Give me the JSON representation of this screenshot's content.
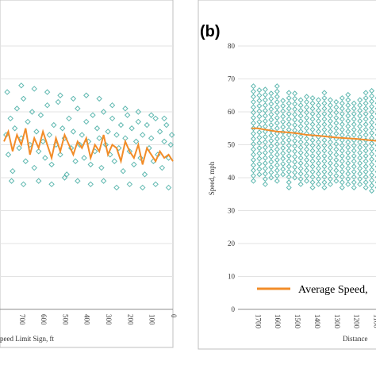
{
  "chart_data": [
    {
      "type": "scatter",
      "panel_label": "",
      "xlabel": "peed Limit Sign, ft",
      "ylabel": "",
      "x_ticks": [
        700,
        600,
        500,
        400,
        300,
        200,
        100,
        0
      ],
      "xlim": [
        780,
        0
      ],
      "ylim": [
        0,
        80
      ],
      "grid": true,
      "series": [
        {
          "marker": "diamond",
          "color": "#5fb8b0",
          "points": [
            [
              770,
              53
            ],
            [
              760,
              47
            ],
            [
              750,
              58
            ],
            [
              740,
              42
            ],
            [
              730,
              55
            ],
            [
              720,
              61
            ],
            [
              710,
              49
            ],
            [
              700,
              52
            ],
            [
              690,
              64
            ],
            [
              680,
              45
            ],
            [
              670,
              57
            ],
            [
              660,
              50
            ],
            [
              650,
              60
            ],
            [
              640,
              43
            ],
            [
              630,
              54
            ],
            [
              620,
              48
            ],
            [
              610,
              59
            ],
            [
              600,
              51
            ],
            [
              590,
              46
            ],
            [
              580,
              62
            ],
            [
              570,
              53
            ],
            [
              560,
              44
            ],
            [
              550,
              56
            ],
            [
              540,
              50
            ],
            [
              530,
              63
            ],
            [
              520,
              47
            ],
            [
              510,
              55
            ],
            [
              500,
              52
            ],
            [
              490,
              41
            ],
            [
              480,
              58
            ],
            [
              470,
              49
            ],
            [
              460,
              54
            ],
            [
              450,
              45
            ],
            [
              440,
              61
            ],
            [
              430,
              50
            ],
            [
              420,
              53
            ],
            [
              410,
              46
            ],
            [
              400,
              57
            ],
            [
              390,
              51
            ],
            [
              380,
              44
            ],
            [
              370,
              59
            ],
            [
              360,
              48
            ],
            [
              350,
              55
            ],
            [
              340,
              52
            ],
            [
              330,
              43
            ],
            [
              320,
              60
            ],
            [
              310,
              50
            ],
            [
              300,
              54
            ],
            [
              290,
              47
            ],
            [
              280,
              58
            ],
            [
              270,
              45
            ],
            [
              260,
              53
            ],
            [
              250,
              49
            ],
            [
              240,
              56
            ],
            [
              230,
              42
            ],
            [
              220,
              52
            ],
            [
              210,
              59
            ],
            [
              200,
              48
            ],
            [
              190,
              55
            ],
            [
              180,
              44
            ],
            [
              170,
              51
            ],
            [
              160,
              57
            ],
            [
              150,
              46
            ],
            [
              140,
              53
            ],
            [
              130,
              41
            ],
            [
              120,
              56
            ],
            [
              110,
              49
            ],
            [
              100,
              52
            ],
            [
              90,
              45
            ],
            [
              80,
              58
            ],
            [
              70,
              47
            ],
            [
              60,
              54
            ],
            [
              50,
              43
            ],
            [
              40,
              51
            ],
            [
              30,
              56
            ],
            [
              20,
              46
            ],
            [
              10,
              50
            ],
            [
              5,
              53
            ],
            [
              765,
              66
            ],
            [
              700,
              68
            ],
            [
              640,
              67
            ],
            [
              580,
              66
            ],
            [
              520,
              65
            ],
            [
              460,
              64
            ],
            [
              400,
              65
            ],
            [
              340,
              64
            ],
            [
              280,
              62
            ],
            [
              220,
              61
            ],
            [
              160,
              60
            ],
            [
              100,
              59
            ],
            [
              40,
              58
            ],
            [
              745,
              39
            ],
            [
              690,
              38
            ],
            [
              620,
              39
            ],
            [
              560,
              38
            ],
            [
              500,
              40
            ],
            [
              440,
              39
            ],
            [
              380,
              38
            ],
            [
              320,
              39
            ],
            [
              260,
              37
            ],
            [
              200,
              38
            ],
            [
              140,
              37
            ],
            [
              80,
              38
            ],
            [
              20,
              37
            ]
          ]
        },
        {
          "name": "Average Speed",
          "color": "#f28c28",
          "x": [
            780,
            760,
            740,
            720,
            700,
            680,
            660,
            640,
            620,
            600,
            580,
            560,
            540,
            520,
            500,
            480,
            460,
            440,
            420,
            400,
            380,
            360,
            340,
            320,
            300,
            280,
            260,
            240,
            220,
            200,
            180,
            160,
            140,
            120,
            100,
            80,
            60,
            40,
            20,
            0
          ],
          "y": [
            51,
            54,
            48,
            53,
            50,
            55,
            47,
            52,
            49,
            54,
            50,
            46,
            52,
            48,
            53,
            50,
            47,
            51,
            49,
            52,
            46,
            50,
            48,
            53,
            47,
            50,
            49,
            45,
            51,
            48,
            46,
            50,
            44,
            49,
            47,
            45,
            48,
            46,
            47,
            45
          ]
        }
      ]
    },
    {
      "type": "scatter",
      "panel_label": "(b)",
      "xlabel": "Distance",
      "ylabel": "Speed, mph",
      "x_ticks": [
        1700,
        1600,
        1500,
        1400,
        1300,
        1200,
        1100
      ],
      "xlim": [
        1750,
        1050
      ],
      "ylim": [
        0,
        80
      ],
      "y_ticks": [
        0,
        10,
        20,
        30,
        40,
        50,
        60,
        70,
        80
      ],
      "grid": true,
      "legend": {
        "placement": "bottom",
        "label": "Average Speed,"
      },
      "series": [
        {
          "marker": "diamond",
          "color": "#5fb8b0",
          "columns": [
            {
              "x": 1720,
              "min": 39,
              "max": 69
            },
            {
              "x": 1690,
              "min": 41,
              "max": 68
            },
            {
              "x": 1660,
              "min": 38,
              "max": 67
            },
            {
              "x": 1630,
              "min": 40,
              "max": 66
            },
            {
              "x": 1600,
              "min": 39,
              "max": 68
            },
            {
              "x": 1570,
              "min": 41,
              "max": 65
            },
            {
              "x": 1540,
              "min": 37,
              "max": 66
            },
            {
              "x": 1510,
              "min": 40,
              "max": 67
            },
            {
              "x": 1480,
              "min": 38,
              "max": 64
            },
            {
              "x": 1450,
              "min": 39,
              "max": 66
            },
            {
              "x": 1420,
              "min": 37,
              "max": 65
            },
            {
              "x": 1390,
              "min": 38,
              "max": 64
            },
            {
              "x": 1360,
              "min": 37,
              "max": 66
            },
            {
              "x": 1330,
              "min": 38,
              "max": 65
            },
            {
              "x": 1300,
              "min": 39,
              "max": 64
            },
            {
              "x": 1270,
              "min": 37,
              "max": 65
            },
            {
              "x": 1240,
              "min": 38,
              "max": 66
            },
            {
              "x": 1210,
              "min": 37,
              "max": 64
            },
            {
              "x": 1180,
              "min": 38,
              "max": 65
            },
            {
              "x": 1150,
              "min": 37,
              "max": 66
            },
            {
              "x": 1120,
              "min": 36,
              "max": 67
            },
            {
              "x": 1090,
              "min": 37,
              "max": 65
            },
            {
              "x": 1060,
              "min": 38,
              "max": 67
            }
          ]
        },
        {
          "name": "Average Speed,",
          "color": "#f28c28",
          "x": [
            1730,
            1700,
            1650,
            1600,
            1550,
            1500,
            1450,
            1400,
            1350,
            1300,
            1250,
            1200,
            1150,
            1100,
            1050
          ],
          "y": [
            55,
            55,
            54.5,
            54,
            53.8,
            53.5,
            53,
            52.8,
            52.5,
            52.2,
            52,
            51.8,
            51.5,
            51.2,
            51
          ]
        }
      ]
    }
  ]
}
